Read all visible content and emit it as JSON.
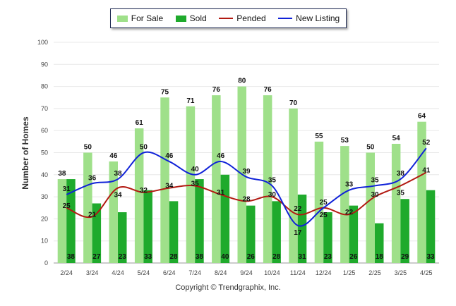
{
  "colors": {
    "for_sale": "#9fe08a",
    "sold": "#1faa2c",
    "pended": "#b21a12",
    "new_listing": "#1022d8",
    "grid": "#e8e8e8"
  },
  "legend": {
    "for_sale": "For Sale",
    "sold": "Sold",
    "pended": "Pended",
    "new_listing": "New Listing"
  },
  "copyright": "Copyright © Trendgraphix, Inc.",
  "chart_data": {
    "type": "bar",
    "title": "",
    "xlabel": "",
    "ylabel": "Number of Homes",
    "ylim": [
      0,
      100
    ],
    "yticks": [
      0,
      10,
      20,
      30,
      40,
      50,
      60,
      70,
      80,
      90,
      100
    ],
    "grid": true,
    "legend_position": "top",
    "categories": [
      "2/24",
      "3/24",
      "4/24",
      "5/24",
      "6/24",
      "7/24",
      "8/24",
      "9/24",
      "10/24",
      "11/24",
      "12/24",
      "1/25",
      "2/25",
      "3/25",
      "4/25"
    ],
    "series": [
      {
        "name": "For Sale",
        "type": "bar",
        "values": [
          38,
          50,
          46,
          61,
          75,
          71,
          76,
          80,
          76,
          70,
          55,
          53,
          50,
          54,
          64
        ]
      },
      {
        "name": "Sold",
        "type": "bar",
        "values": [
          38,
          27,
          23,
          33,
          28,
          38,
          40,
          26,
          28,
          31,
          23,
          26,
          18,
          29,
          33
        ]
      },
      {
        "name": "Pended",
        "type": "line",
        "values": [
          25,
          21,
          34,
          32,
          34,
          35,
          31,
          28,
          30,
          22,
          25,
          22,
          30,
          35,
          41
        ]
      },
      {
        "name": "New Listing",
        "type": "line",
        "values": [
          31,
          36,
          38,
          50,
          46,
          40,
          46,
          39,
          35,
          17,
          25,
          33,
          35,
          38,
          52
        ]
      }
    ]
  }
}
